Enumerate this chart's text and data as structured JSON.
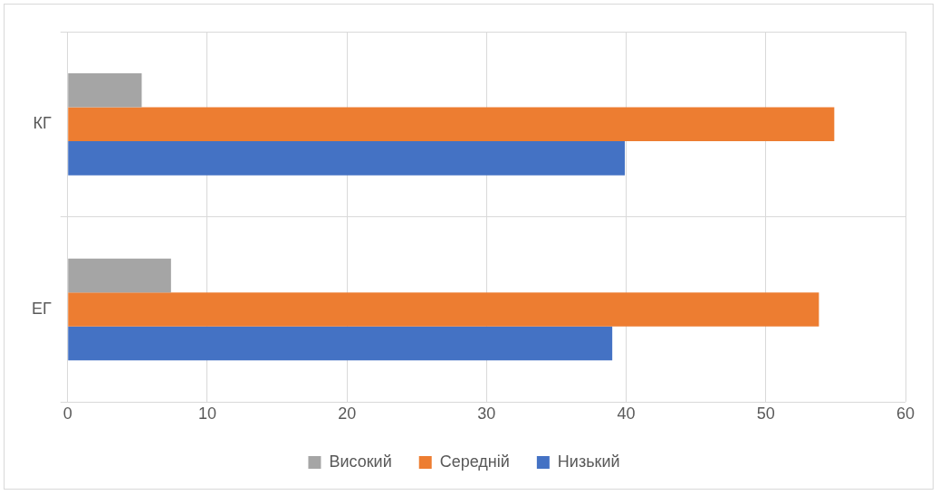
{
  "chart_data": {
    "type": "bar",
    "orientation": "horizontal",
    "categories": [
      "КГ",
      "ЕГ"
    ],
    "series": [
      {
        "name": "Високий",
        "color": "#a5a5a5",
        "values": [
          5.3,
          7.4
        ]
      },
      {
        "name": "Середній",
        "color": "#ed7d31",
        "values": [
          54.9,
          53.8
        ]
      },
      {
        "name": "Низький",
        "color": "#4472c4",
        "values": [
          39.9,
          39.0
        ]
      }
    ],
    "xlim": [
      0,
      60
    ],
    "xticks": [
      0,
      10,
      20,
      30,
      40,
      50,
      60
    ],
    "grid": true,
    "legend": "bottom"
  }
}
